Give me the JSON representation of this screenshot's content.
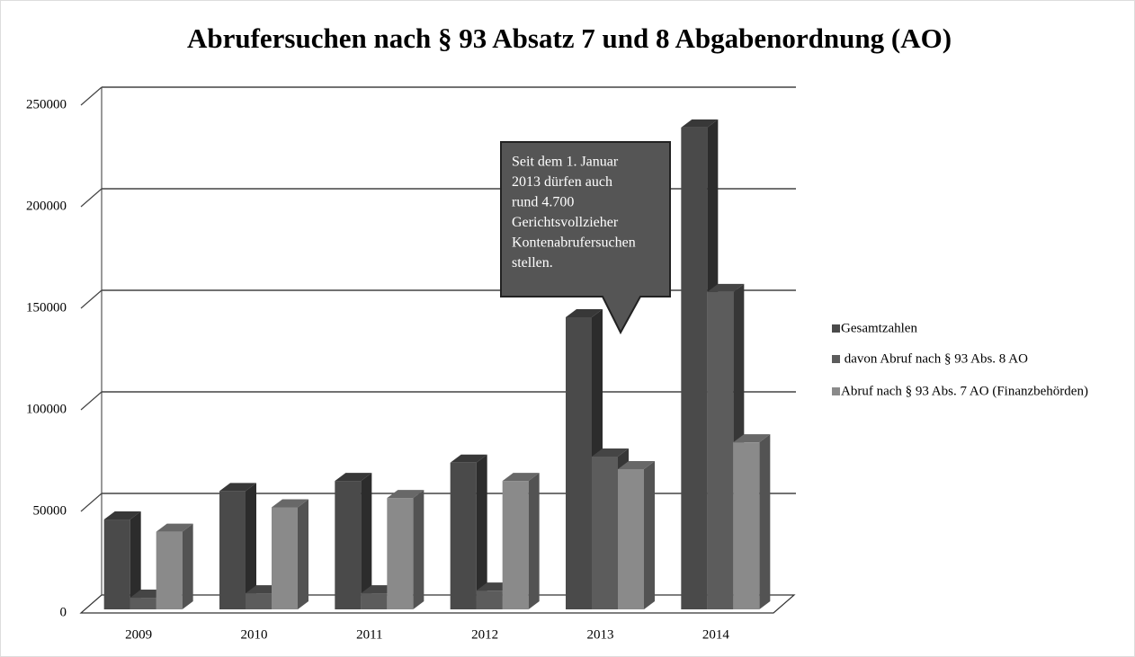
{
  "chart_data": {
    "type": "bar3d",
    "title": "Abrufersuchen nach § 93 Absatz 7 und 8 Abgabenordnung (AO)",
    "categories": [
      "2009",
      "2010",
      "2011",
      "2012",
      "2013",
      "2014"
    ],
    "series": [
      {
        "name": "Gesamtzahlen",
        "color": "#4a4a4a",
        "values": [
          46000,
          60000,
          65000,
          74000,
          145600,
          239000
        ]
      },
      {
        "name": " davon Abruf nach § 93 Abs. 8 AO",
        "color": "#5c5c5c",
        "values": [
          7500,
          9700,
          9700,
          11000,
          77000,
          158000
        ]
      },
      {
        "name": "Abruf nach § 93 Abs. 7 AO (Finanzbehörden)",
        "color": "#8a8a8a",
        "values": [
          40000,
          52000,
          56600,
          65000,
          70800,
          84000
        ]
      }
    ],
    "ylim": [
      0,
      250000
    ],
    "yticks": [
      0,
      50000,
      100000,
      150000,
      200000,
      250000
    ],
    "grid": true,
    "legend": "right",
    "annotation": [
      "Seit dem 1. Januar",
      "2013  dürfen auch",
      "rund 4.700",
      "Gerichtsvollzieher",
      "Kontenabrufersuchen",
      "stellen."
    ]
  }
}
